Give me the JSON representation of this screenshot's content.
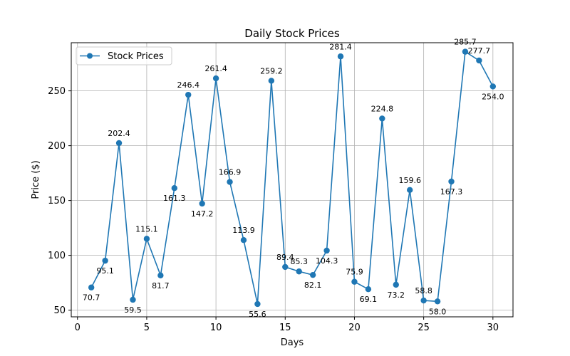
{
  "chart_data": {
    "type": "line",
    "title": "Daily Stock Prices",
    "xlabel": "Days",
    "ylabel": "Price ($)",
    "xlim": [
      -0.45,
      31.45
    ],
    "ylim": [
      43.9,
      293.9
    ],
    "xticks": [
      0,
      5,
      10,
      15,
      20,
      25,
      30
    ],
    "yticks": [
      50,
      100,
      150,
      200,
      250
    ],
    "grid": true,
    "legend_position": "top-left",
    "series": [
      {
        "name": "Stock Prices",
        "color": "#1f77b4",
        "marker": "circle",
        "x": [
          1,
          2,
          3,
          4,
          5,
          6,
          7,
          8,
          9,
          10,
          11,
          12,
          13,
          14,
          15,
          16,
          17,
          18,
          19,
          20,
          21,
          22,
          23,
          24,
          25,
          26,
          27,
          28,
          29,
          30
        ],
        "values": [
          70.7,
          95.1,
          202.4,
          59.5,
          115.1,
          81.7,
          161.3,
          246.4,
          147.2,
          261.4,
          166.9,
          113.9,
          55.6,
          259.2,
          89.4,
          85.3,
          82.1,
          104.3,
          281.4,
          75.9,
          69.1,
          224.8,
          73.2,
          159.6,
          58.8,
          58.0,
          167.3,
          285.7,
          277.7,
          254.0
        ],
        "labels": [
          "70.7",
          "95.1",
          "202.4",
          "59.5",
          "115.1",
          "81.7",
          "161.3",
          "246.4",
          "147.2",
          "261.4",
          "166.9",
          "113.9",
          "55.6",
          "259.2",
          "89.4",
          "85.3",
          "82.1",
          "104.3",
          "281.4",
          "75.9",
          "69.1",
          "224.8",
          "73.2",
          "159.6",
          "58.8",
          "58.0",
          "167.3",
          "285.7",
          "277.7",
          "254.0"
        ]
      }
    ]
  }
}
